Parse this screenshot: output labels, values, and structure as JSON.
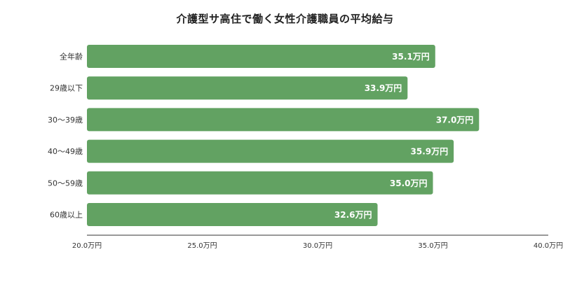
{
  "chart_data": {
    "type": "bar",
    "orientation": "horizontal",
    "title": "介護型サ高住で働く女性介護職員の平均給与",
    "categories": [
      "全年齢",
      "29歳以下",
      "30～39歳",
      "40～49歳",
      "50～59歳",
      "60歳以上"
    ],
    "values": [
      35.1,
      33.9,
      37.0,
      35.9,
      35.0,
      32.6
    ],
    "value_labels": [
      "35.1万円",
      "33.9万円",
      "37.0万円",
      "35.9万円",
      "35.0万円",
      "32.6万円"
    ],
    "xlim": [
      20,
      40
    ],
    "xticks": [
      20,
      25,
      30,
      35,
      40
    ],
    "xtick_labels": [
      "20.0万円",
      "25.0万円",
      "30.0万円",
      "35.0万円",
      "40.0万円"
    ],
    "xlabel": "",
    "ylabel": "",
    "grid": false,
    "legend": "none",
    "bar_color": "#62a262"
  }
}
